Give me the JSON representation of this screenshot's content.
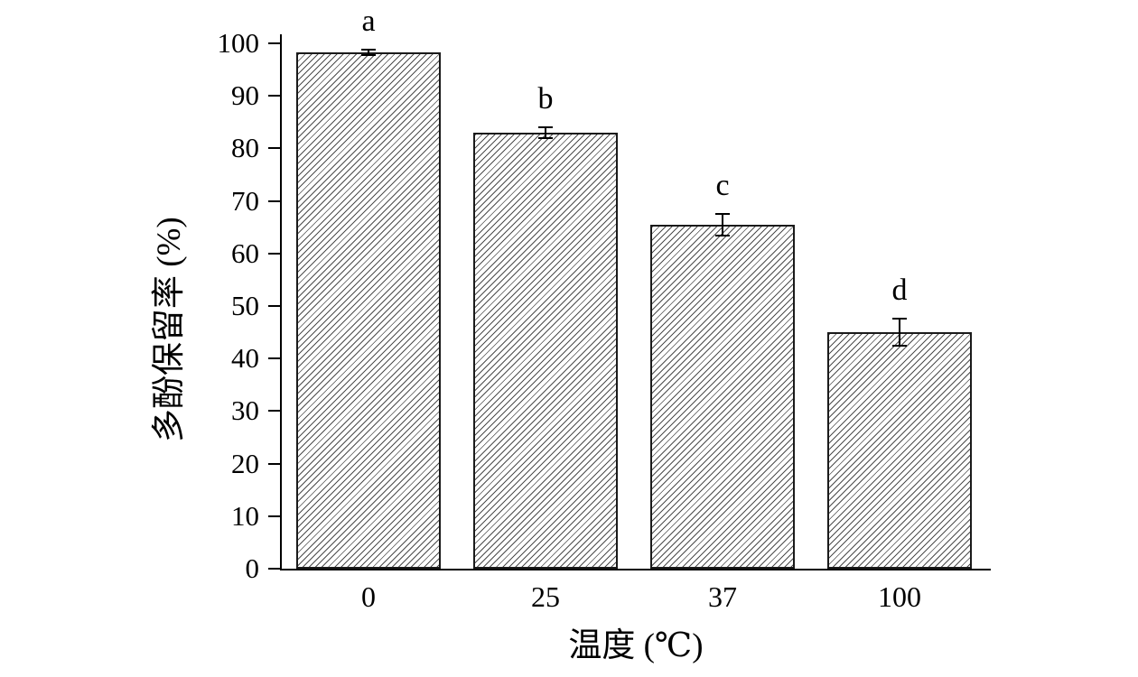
{
  "chart_data": {
    "type": "bar",
    "title": "",
    "xlabel": "温度 (℃)",
    "ylabel": "多酚保留率 (%)",
    "categories": [
      "0",
      "25",
      "37",
      "100"
    ],
    "values": [
      98.3,
      83,
      65.5,
      45
    ],
    "errors": [
      0.7,
      1.2,
      2.2,
      2.8
    ],
    "bar_labels": [
      "a",
      "b",
      "c",
      "d"
    ],
    "ylim": [
      0,
      100
    ],
    "yticks": [
      0,
      10,
      20,
      30,
      40,
      50,
      60,
      70,
      80,
      90,
      100
    ],
    "grid": false,
    "legend": null,
    "bar_fill_style": "diagonal-hatch",
    "bar_edge_color": "#1a1a1a",
    "hatch_color": "#4d4d4d",
    "background_color": "#ffffff"
  }
}
